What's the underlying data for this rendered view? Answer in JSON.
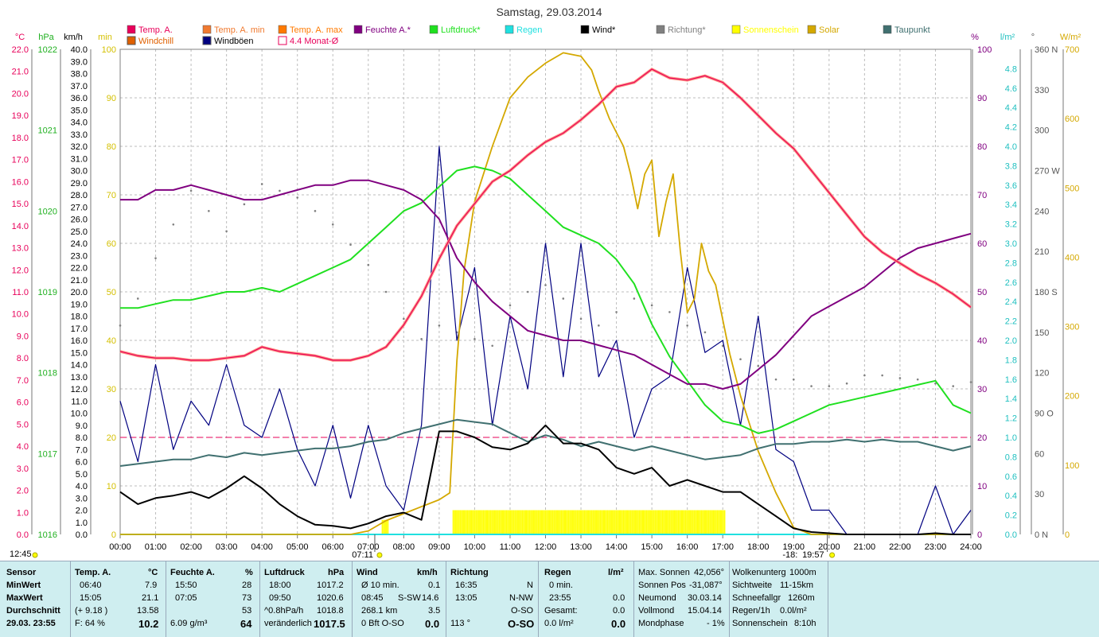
{
  "title": "Samstag, 29.03.2014",
  "legend_row1": [
    {
      "label": "Temp. A.",
      "color": "#e8005a",
      "hollow": false
    },
    {
      "label": "Temp. A. min",
      "color": "#f07a30",
      "hollow": false
    },
    {
      "label": "Temp. A. max",
      "color": "#ff7a00",
      "hollow": false
    },
    {
      "label": "Feuchte A.*",
      "color": "#800080",
      "hollow": false
    },
    {
      "label": "Luftdruck*",
      "color": "#20e020",
      "hollow": false
    },
    {
      "label": "Regen",
      "color": "#20e0e0",
      "hollow": false
    },
    {
      "label": "Wind*",
      "color": "#000000",
      "hollow": false
    },
    {
      "label": "Richtung*",
      "color": "#808080",
      "hollow": false
    },
    {
      "label": "Sonnenschein",
      "color": "#ffff00",
      "hollow": false
    },
    {
      "label": "Solar",
      "color": "#d4a800",
      "hollow": false
    },
    {
      "label": "Taupunkt",
      "color": "#407070",
      "hollow": false
    }
  ],
  "legend_row2": [
    {
      "label": "Windchill",
      "color": "#e06000",
      "hollow": false
    },
    {
      "label": "Windböen",
      "color": "#000080",
      "hollow": false
    },
    {
      "label": "4.4 Monat-Ø",
      "color": "#e8005a",
      "hollow": true
    }
  ],
  "axes": {
    "temp": {
      "unit": "°C",
      "ticks": [
        "22.0",
        "21.0",
        "20.0",
        "19.0",
        "18.0",
        "17.0",
        "16.0",
        "15.0",
        "14.0",
        "13.0",
        "12.0",
        "11.0",
        "10.0",
        "9.0",
        "8.0",
        "7.0",
        "6.0",
        "5.0",
        "4.0",
        "3.0",
        "2.0",
        "1.0",
        "0.0"
      ]
    },
    "pressure": {
      "unit": "hPa",
      "ticks": [
        "1022",
        "1021",
        "1020",
        "1019",
        "1018",
        "1017",
        "1016"
      ]
    },
    "wind": {
      "unit": "km/h",
      "ticks": [
        "40.0",
        "39.0",
        "38.0",
        "37.0",
        "36.0",
        "35.0",
        "34.0",
        "33.0",
        "32.0",
        "31.0",
        "30.0",
        "29.0",
        "28.0",
        "27.0",
        "26.0",
        "25.0",
        "24.0",
        "23.0",
        "22.0",
        "21.0",
        "20.0",
        "19.0",
        "18.0",
        "17.0",
        "16.0",
        "15.0",
        "14.0",
        "13.0",
        "12.0",
        "11.0",
        "10.0",
        "9.0",
        "8.0",
        "7.0",
        "6.0",
        "5.0",
        "4.0",
        "3.0",
        "2.0",
        "1.0",
        "0.0"
      ]
    },
    "sun": {
      "unit": "min",
      "ticks": [
        "100",
        "90",
        "80",
        "70",
        "60",
        "50",
        "40",
        "30",
        "20",
        "10",
        "0"
      ]
    },
    "humidity": {
      "unit": "%",
      "ticks": [
        "100",
        "90",
        "80",
        "70",
        "60",
        "50",
        "40",
        "30",
        "20",
        "10",
        "0"
      ]
    },
    "rain": {
      "unit": "l/m²",
      "ticks": [
        "4.8",
        "4.6",
        "4.4",
        "4.2",
        "4.0",
        "3.8",
        "3.6",
        "3.4",
        "3.2",
        "3.0",
        "2.8",
        "2.6",
        "2.4",
        "2.2",
        "2.0",
        "1.8",
        "1.6",
        "1.4",
        "1.2",
        "1.0",
        "0.8",
        "0.6",
        "0.4",
        "0.2",
        "0.0"
      ]
    },
    "direction": {
      "unit": "°",
      "ticks": [
        "360 N",
        "330",
        "300",
        "270 W",
        "240",
        "210",
        "180 S",
        "150",
        "120",
        "90 O",
        "60",
        "30",
        "0 N"
      ]
    },
    "solar": {
      "unit": "W/m²",
      "ticks": [
        "700",
        "600",
        "500",
        "400",
        "300",
        "200",
        "100",
        "0"
      ]
    },
    "time": [
      "00:00",
      "01:00",
      "02:00",
      "03:00",
      "04:00",
      "05:00",
      "06:00",
      "07:00",
      "08:00",
      "09:00",
      "10:00",
      "11:00",
      "12:00",
      "13:00",
      "14:00",
      "15:00",
      "16:00",
      "17:00",
      "18:00",
      "19:00",
      "20:00",
      "21:00",
      "22:00",
      "23:00",
      "24:00"
    ]
  },
  "markers": {
    "left_time": "12:45",
    "sunrise": "07:11",
    "sunset": "19:57",
    "sunset_prefix": "-18:"
  },
  "chart_data": {
    "type": "line",
    "title": "Samstag, 29.03.2014",
    "x_unit": "hours",
    "xlim": [
      0,
      24
    ],
    "monthly_avg_temp": 4.4,
    "series": [
      {
        "name": "Temp. A.",
        "axis": "temp",
        "x": [
          0,
          0.5,
          1,
          1.5,
          2,
          2.5,
          3,
          3.5,
          4,
          4.5,
          5,
          5.5,
          6,
          6.5,
          7,
          7.5,
          8,
          8.5,
          9,
          9.5,
          10,
          10.5,
          11,
          11.5,
          12,
          12.5,
          13,
          13.5,
          14,
          14.5,
          15,
          15.5,
          16,
          16.5,
          17,
          17.5,
          18,
          18.5,
          19,
          19.5,
          20,
          20.5,
          21,
          21.5,
          22,
          22.5,
          23,
          23.5,
          24
        ],
        "y": [
          8.3,
          8.1,
          8.0,
          8.0,
          7.9,
          7.9,
          8.0,
          8.1,
          8.5,
          8.3,
          8.2,
          8.1,
          7.9,
          7.9,
          8.1,
          8.5,
          9.5,
          10.8,
          12.5,
          14.0,
          15.0,
          16.0,
          16.5,
          17.2,
          17.8,
          18.2,
          18.8,
          19.5,
          20.3,
          20.5,
          21.1,
          20.7,
          20.6,
          20.8,
          20.5,
          19.8,
          19.0,
          18.2,
          17.5,
          16.5,
          15.5,
          14.5,
          13.5,
          12.8,
          12.3,
          11.8,
          11.4,
          10.9,
          10.3
        ]
      },
      {
        "name": "Feuchte A.*",
        "axis": "humidity",
        "x": [
          0,
          0.5,
          1,
          1.5,
          2,
          2.5,
          3,
          3.5,
          4,
          4.5,
          5,
          5.5,
          6,
          6.5,
          7,
          7.5,
          8,
          8.5,
          9,
          9.5,
          10,
          10.5,
          11,
          11.5,
          12,
          12.5,
          13,
          13.5,
          14,
          14.5,
          15,
          15.5,
          16,
          16.5,
          17,
          17.5,
          18,
          18.5,
          19,
          19.5,
          20,
          20.5,
          21,
          21.5,
          22,
          22.5,
          23,
          23.5,
          24
        ],
        "y": [
          69,
          69,
          71,
          71,
          72,
          71,
          70,
          69,
          69,
          70,
          71,
          72,
          72,
          73,
          73,
          72,
          71,
          69,
          65,
          57,
          52,
          48,
          45,
          42,
          41,
          40,
          40,
          39,
          38,
          37,
          35,
          33,
          31,
          31,
          30,
          31,
          34,
          37,
          41,
          45,
          47,
          49,
          51,
          54,
          57,
          59,
          60,
          61,
          62
        ]
      },
      {
        "name": "Luftdruck*",
        "axis": "pressure",
        "x": [
          0,
          0.5,
          1,
          1.5,
          2,
          2.5,
          3,
          3.5,
          4,
          4.5,
          5,
          5.5,
          6,
          6.5,
          7,
          7.5,
          8,
          8.5,
          9,
          9.5,
          10,
          10.5,
          11,
          11.5,
          12,
          12.5,
          13,
          13.5,
          14,
          14.5,
          15,
          15.5,
          16,
          16.5,
          17,
          17.5,
          18,
          18.5,
          19,
          19.5,
          20,
          20.5,
          21,
          21.5,
          22,
          22.5,
          23,
          23.5,
          24
        ],
        "y": [
          1018.8,
          1018.8,
          1018.85,
          1018.9,
          1018.9,
          1018.95,
          1019.0,
          1019.0,
          1019.05,
          1019.0,
          1019.1,
          1019.2,
          1019.3,
          1019.4,
          1019.6,
          1019.8,
          1020.0,
          1020.1,
          1020.3,
          1020.5,
          1020.55,
          1020.5,
          1020.4,
          1020.2,
          1020.0,
          1019.8,
          1019.7,
          1019.6,
          1019.4,
          1019.1,
          1018.6,
          1018.2,
          1017.9,
          1017.6,
          1017.4,
          1017.35,
          1017.25,
          1017.3,
          1017.4,
          1017.5,
          1017.6,
          1017.65,
          1017.7,
          1017.75,
          1017.8,
          1017.85,
          1017.9,
          1017.6,
          1017.5
        ]
      },
      {
        "name": "Wind*",
        "axis": "wind",
        "x": [
          0,
          0.5,
          1,
          1.5,
          2,
          2.5,
          3,
          3.5,
          4,
          4.5,
          5,
          5.5,
          6,
          6.5,
          7,
          7.5,
          8,
          8.5,
          9,
          9.5,
          10,
          10.5,
          11,
          11.5,
          12,
          12.5,
          13,
          13.5,
          14,
          14.5,
          15,
          15.5,
          16,
          16.5,
          17,
          17.5,
          18,
          18.5,
          19,
          19.5,
          20,
          20.5,
          21,
          21.5,
          22,
          22.5,
          23,
          23.5,
          24
        ],
        "y": [
          3.5,
          2.5,
          3.0,
          3.2,
          3.5,
          3.0,
          3.8,
          4.8,
          3.8,
          2.5,
          1.5,
          0.8,
          0.7,
          0.5,
          0.9,
          1.5,
          1.8,
          1.2,
          8.5,
          8.5,
          8.0,
          7.2,
          7.0,
          7.5,
          9.0,
          7.5,
          7.5,
          7.0,
          5.5,
          5.0,
          5.5,
          4.0,
          4.5,
          4.0,
          3.5,
          3.5,
          2.5,
          1.5,
          0.5,
          0.2,
          0.1,
          0.0,
          0.0,
          0.0,
          0.0,
          0.0,
          0.1,
          0.0,
          0.0
        ]
      },
      {
        "name": "Windböen",
        "axis": "wind",
        "x": [
          0,
          0.5,
          1,
          1.5,
          2,
          2.5,
          3,
          3.5,
          4,
          4.5,
          5,
          5.5,
          6,
          6.5,
          7,
          7.5,
          8,
          8.5,
          9,
          9.5,
          10,
          10.5,
          11,
          11.5,
          12,
          12.5,
          13,
          13.5,
          14,
          14.5,
          15,
          15.5,
          16,
          16.5,
          17,
          17.5,
          18,
          18.5,
          19,
          19.5,
          20,
          20.5,
          21,
          21.5,
          22,
          22.5,
          23,
          23.5,
          24
        ],
        "y": [
          11,
          6,
          14,
          7,
          11,
          9,
          14,
          9,
          8,
          12,
          7,
          4,
          9,
          3,
          9,
          4,
          2,
          9,
          32,
          16,
          22,
          9,
          18,
          12,
          24,
          13,
          24,
          13,
          16,
          8,
          12,
          13,
          22,
          15,
          16,
          9,
          18,
          7,
          6,
          2,
          2,
          0,
          0,
          0,
          0,
          0,
          4,
          0,
          2
        ]
      },
      {
        "name": "Taupunkt",
        "axis": "temp",
        "x": [
          0,
          0.5,
          1,
          1.5,
          2,
          2.5,
          3,
          3.5,
          4,
          4.5,
          5,
          5.5,
          6,
          6.5,
          7,
          7.5,
          8,
          8.5,
          9,
          9.5,
          10,
          10.5,
          11,
          11.5,
          12,
          12.5,
          13,
          13.5,
          14,
          14.5,
          15,
          15.5,
          16,
          16.5,
          17,
          17.5,
          18,
          18.5,
          19,
          19.5,
          20,
          20.5,
          21,
          21.5,
          22,
          22.5,
          23,
          23.5,
          24
        ],
        "y": [
          3.1,
          3.2,
          3.3,
          3.4,
          3.4,
          3.6,
          3.5,
          3.7,
          3.6,
          3.7,
          3.8,
          3.9,
          3.9,
          4.0,
          4.2,
          4.3,
          4.6,
          4.8,
          5.0,
          5.2,
          5.1,
          5.0,
          4.6,
          4.2,
          4.5,
          4.3,
          4.0,
          4.2,
          4.0,
          3.8,
          4.0,
          3.8,
          3.6,
          3.4,
          3.5,
          3.6,
          3.9,
          4.1,
          4.1,
          4.2,
          4.2,
          4.3,
          4.2,
          4.3,
          4.2,
          4.2,
          4.0,
          3.8,
          4.0
        ]
      },
      {
        "name": "Solar",
        "axis": "solar",
        "x": [
          0,
          6.5,
          7,
          7.5,
          8,
          8.5,
          9,
          9.3,
          9.5,
          9.7,
          10,
          10.5,
          11,
          11.5,
          12,
          12.5,
          13,
          13.3,
          13.5,
          13.8,
          14,
          14.2,
          14.4,
          14.6,
          14.8,
          15,
          15.2,
          15.4,
          15.6,
          15.8,
          16,
          16.2,
          16.4,
          16.6,
          16.8,
          17,
          17.2,
          17.5,
          18,
          18.5,
          19,
          19.5,
          20,
          24
        ],
        "y": [
          0,
          0,
          5,
          20,
          30,
          40,
          50,
          60,
          250,
          380,
          480,
          560,
          630,
          660,
          680,
          695,
          690,
          670,
          640,
          600,
          580,
          560,
          520,
          470,
          520,
          540,
          430,
          480,
          520,
          410,
          320,
          340,
          420,
          380,
          360,
          310,
          260,
          200,
          120,
          60,
          10,
          0,
          0,
          0
        ]
      },
      {
        "name": "Sonnenschein",
        "axis": "sun",
        "x": [
          7.4,
          7.6,
          9.4,
          17.1
        ],
        "y": [
          3,
          3,
          5,
          5
        ]
      },
      {
        "name": "Richtung*",
        "axis": "direction",
        "x": [
          0,
          0.5,
          1,
          1.5,
          2,
          2.5,
          3,
          3.5,
          4,
          4.5,
          5,
          5.5,
          6,
          6.5,
          7,
          7.5,
          8,
          8.5,
          9,
          9.5,
          10,
          10.5,
          11,
          11.5,
          12,
          12.5,
          13,
          13.5,
          14,
          14.5,
          15,
          15.5,
          16,
          16.5,
          17,
          17.5,
          18,
          18.5,
          19,
          19.5,
          20,
          20.5,
          21,
          21.5,
          22,
          22.5,
          23,
          23.5,
          24
        ],
        "y": [
          155,
          175,
          205,
          230,
          255,
          240,
          225,
          245,
          260,
          255,
          250,
          240,
          230,
          215,
          200,
          180,
          160,
          145,
          155,
          150,
          145,
          140,
          170,
          180,
          185,
          175,
          160,
          155,
          165,
          175,
          170,
          165,
          155,
          150,
          140,
          130,
          125,
          115,
          115,
          110,
          110,
          112,
          118,
          118,
          116,
          115,
          112,
          110,
          113
        ]
      },
      {
        "name": "Regen",
        "axis": "rain",
        "x": [
          0,
          24
        ],
        "y": [
          0,
          0
        ]
      }
    ]
  },
  "footer": {
    "date_row": "29.03. 23:55",
    "labels": {
      "sensor": "Sensor",
      "min": "MinWert",
      "max": "MaxWert",
      "avg": "Durchschnitt"
    },
    "temp": {
      "header": "Temp. A.",
      "unit": "°C",
      "min_time": "06:40",
      "min": "7.9",
      "max_time": "15:05",
      "max": "21.1",
      "avg_note": "(+ 9.18 )",
      "avg": "13.58",
      "hum_note": "F: 64 %",
      "current": "10.2"
    },
    "humidity": {
      "header": "Feuchte A.",
      "unit": "%",
      "min_time": "15:50",
      "min": "28",
      "max_time": "07:05",
      "max": "73",
      "avg": "53",
      "abs": "6.09 g/m³",
      "current": "64"
    },
    "pressure": {
      "header": "Luftdruck",
      "unit": "hPa",
      "min_time": "18:00",
      "min": "1017.2",
      "max_time": "09:50",
      "max": "1020.6",
      "trend": "^0.8hPa/h",
      "avg": "1018.8",
      "trend_text": "veränderlich",
      "current": "1017.5"
    },
    "wind": {
      "header": "Wind",
      "unit": "km/h",
      "avg10_label": "Ø 10 min.",
      "avg10": "0.1",
      "max_time": "08:45",
      "max_dir": "S-SW",
      "max": "14.6",
      "dist": "268.1 km",
      "avg": "3.5",
      "bft": "0 Bft O-SO",
      "current": "0.0"
    },
    "direction": {
      "header": "Richtung",
      "min_time": "16:35",
      "min_dir": "N",
      "max_time": "13:05",
      "max_dir": "N-NW",
      "avg_dir": "O-SO",
      "deg": "113 °",
      "current": "O-SO"
    },
    "rain": {
      "header": "Regen",
      "unit": "l/m²",
      "row1": "0 min.",
      "row2_time": "23:55",
      "row2_val": "0.0",
      "total_label": "Gesamt:",
      "total": "0.0",
      "current_rate": "0.0 l/m²",
      "current": "0.0"
    },
    "astro": [
      [
        "Max. Sonnen",
        "42,056°"
      ],
      [
        "Sonnen Pos",
        "-31,087°"
      ],
      [
        "Neumond",
        "30.03.14"
      ],
      [
        "Vollmond",
        "15.04.14"
      ],
      [
        "Mondphase",
        "- 1%"
      ]
    ],
    "misc": [
      [
        "Wolkenunterg",
        "1000m"
      ],
      [
        "Sichtweite",
        "11-15km"
      ],
      [
        "Schneefallgr",
        "1260m"
      ],
      [
        "Regen/1h",
        "0.0l/m²"
      ],
      [
        "Sonnenschein",
        "8:10h"
      ]
    ]
  }
}
